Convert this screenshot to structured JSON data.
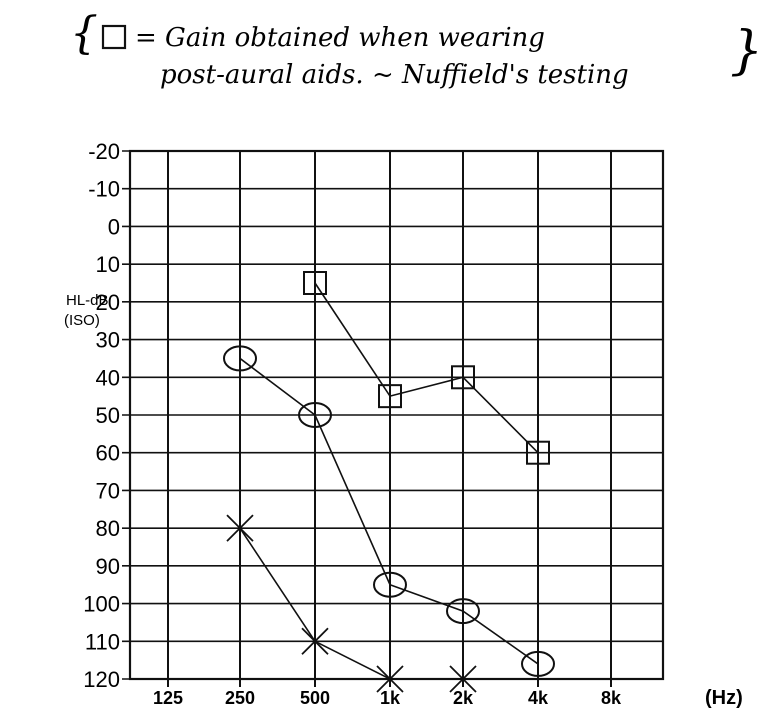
{
  "chart_data": {
    "type": "line",
    "title_line1": "= Gain obtained when wearing",
    "title_line2": "post-aural aids. ~ Nuffield's testing",
    "ylabel_line1": "HL-dB",
    "ylabel_line2": "(ISO)",
    "xunit": "(Hz)",
    "x_categories": [
      "125",
      "250",
      "500",
      "1k",
      "2k",
      "4k",
      "8k"
    ],
    "y_ticks": [
      -20,
      -10,
      0,
      10,
      20,
      30,
      40,
      50,
      60,
      70,
      80,
      90,
      100,
      110,
      120
    ],
    "ylim": [
      -20,
      120
    ],
    "y_inverted": true,
    "grid": true,
    "series": [
      {
        "marker": "square",
        "x": [
          "500",
          "1k",
          "2k",
          "4k"
        ],
        "values": [
          15,
          45,
          40,
          60
        ]
      },
      {
        "marker": "circle",
        "x": [
          "250",
          "500",
          "1k",
          "2k",
          "4k"
        ],
        "values": [
          35,
          50,
          95,
          102,
          116
        ]
      },
      {
        "marker": "cross",
        "x": [
          "250",
          "500",
          "1k",
          "2k"
        ],
        "values": [
          80,
          110,
          120,
          120
        ]
      }
    ]
  }
}
